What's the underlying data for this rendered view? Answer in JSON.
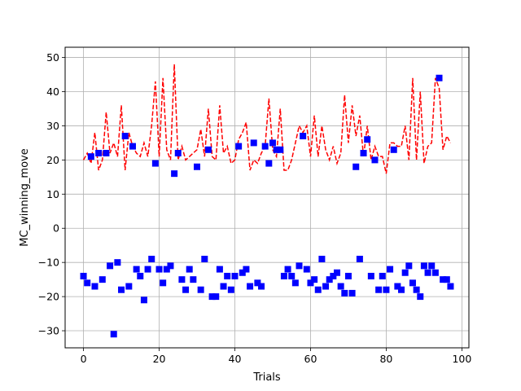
{
  "chart_data": {
    "type": "line",
    "title": "",
    "xlabel": "Trials",
    "ylabel": "MC_winning_move",
    "xlim": [
      -4.85,
      101.85
    ],
    "ylim": [
      -35,
      53
    ],
    "xticks": [
      0,
      20,
      40,
      60,
      80,
      100
    ],
    "yticks": [
      -30,
      -20,
      -10,
      0,
      10,
      20,
      30,
      40,
      50
    ],
    "grid": true,
    "legend": "none",
    "series": [
      {
        "style": "dashed-line",
        "color": "#ff0000",
        "x": [
          0,
          1,
          2,
          3,
          4,
          5,
          6,
          7,
          8,
          9,
          10,
          11,
          12,
          13,
          14,
          15,
          16,
          17,
          18,
          19,
          20,
          21,
          22,
          23,
          24,
          25,
          26,
          27,
          28,
          29,
          30,
          31,
          32,
          33,
          34,
          35,
          36,
          37,
          38,
          39,
          40,
          41,
          42,
          43,
          44,
          45,
          46,
          47,
          48,
          49,
          50,
          51,
          52,
          53,
          54,
          55,
          56,
          57,
          58,
          59,
          60,
          61,
          62,
          63,
          64,
          65,
          66,
          67,
          68,
          69,
          70,
          71,
          72,
          73,
          74,
          75,
          76,
          77,
          78,
          79,
          80,
          81,
          82,
          83,
          84,
          85,
          86,
          87,
          88,
          89,
          90,
          91,
          92,
          93,
          94,
          95,
          96,
          97
        ],
        "y": [
          20,
          22,
          19,
          28,
          17,
          20,
          34,
          22,
          25,
          21,
          36,
          17,
          28,
          24,
          22,
          21,
          25,
          21,
          30,
          43,
          21,
          44,
          23,
          20,
          48,
          20,
          24,
          20,
          21,
          22,
          23,
          29,
          21,
          35,
          21,
          20,
          36,
          22,
          24,
          19,
          20,
          26,
          28,
          31,
          17,
          20,
          19,
          22,
          24,
          38,
          23,
          21,
          35,
          17,
          17,
          20,
          25,
          30,
          28,
          30,
          21,
          33,
          21,
          30,
          23,
          20,
          24,
          19,
          22,
          39,
          25,
          36,
          27,
          33,
          21,
          30,
          20,
          24,
          21,
          21,
          16,
          25,
          25,
          24,
          24,
          30,
          20,
          44,
          20,
          40,
          19,
          24,
          25,
          44,
          41,
          23,
          27,
          25
        ]
      },
      {
        "style": "square-markers",
        "color": "#0000ff",
        "points": [
          [
            0,
            -14
          ],
          [
            1,
            -16
          ],
          [
            2,
            21
          ],
          [
            3,
            -17
          ],
          [
            4,
            22
          ],
          [
            5,
            -15
          ],
          [
            6,
            22
          ],
          [
            7,
            -11
          ],
          [
            8,
            -31
          ],
          [
            9,
            -10
          ],
          [
            10,
            -18
          ],
          [
            11,
            27
          ],
          [
            12,
            -17
          ],
          [
            13,
            24
          ],
          [
            14,
            -12
          ],
          [
            15,
            -14
          ],
          [
            16,
            -21
          ],
          [
            17,
            -12
          ],
          [
            18,
            -9
          ],
          [
            19,
            19
          ],
          [
            20,
            -12
          ],
          [
            21,
            -16
          ],
          [
            22,
            -12
          ],
          [
            23,
            -11
          ],
          [
            24,
            16
          ],
          [
            25,
            22
          ],
          [
            26,
            -15
          ],
          [
            27,
            -18
          ],
          [
            28,
            -12
          ],
          [
            29,
            -15
          ],
          [
            30,
            18
          ],
          [
            31,
            -18
          ],
          [
            32,
            -9
          ],
          [
            33,
            23
          ],
          [
            34,
            -20
          ],
          [
            35,
            -20
          ],
          [
            36,
            -12
          ],
          [
            37,
            -17
          ],
          [
            38,
            -14
          ],
          [
            39,
            -18
          ],
          [
            40,
            -14
          ],
          [
            41,
            24
          ],
          [
            42,
            -13
          ],
          [
            43,
            -12
          ],
          [
            44,
            -17
          ],
          [
            45,
            25
          ],
          [
            46,
            -16
          ],
          [
            47,
            -17
          ],
          [
            48,
            24
          ],
          [
            49,
            19
          ],
          [
            50,
            25
          ],
          [
            51,
            23
          ],
          [
            52,
            23
          ],
          [
            53,
            -14
          ],
          [
            54,
            -12
          ],
          [
            55,
            -14
          ],
          [
            56,
            -16
          ],
          [
            57,
            -11
          ],
          [
            58,
            27
          ],
          [
            59,
            -12
          ],
          [
            60,
            -16
          ],
          [
            61,
            -15
          ],
          [
            62,
            -18
          ],
          [
            63,
            -9
          ],
          [
            64,
            -17
          ],
          [
            65,
            -15
          ],
          [
            66,
            -14
          ],
          [
            67,
            -13
          ],
          [
            68,
            -17
          ],
          [
            69,
            -19
          ],
          [
            70,
            -14
          ],
          [
            71,
            -19
          ],
          [
            72,
            18
          ],
          [
            73,
            -9
          ],
          [
            74,
            22
          ],
          [
            75,
            26
          ],
          [
            76,
            -14
          ],
          [
            77,
            20
          ],
          [
            78,
            -18
          ],
          [
            79,
            -14
          ],
          [
            80,
            -18
          ],
          [
            81,
            -12
          ],
          [
            82,
            23
          ],
          [
            83,
            -17
          ],
          [
            84,
            -18
          ],
          [
            85,
            -13
          ],
          [
            86,
            -11
          ],
          [
            87,
            -16
          ],
          [
            88,
            -18
          ],
          [
            89,
            -20
          ],
          [
            90,
            -11
          ],
          [
            91,
            -13
          ],
          [
            92,
            -11
          ],
          [
            93,
            -13
          ],
          [
            94,
            44
          ],
          [
            95,
            -15
          ],
          [
            96,
            -15
          ],
          [
            97,
            -17
          ]
        ]
      }
    ]
  }
}
